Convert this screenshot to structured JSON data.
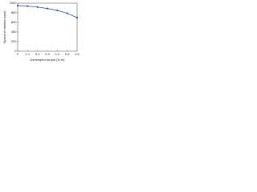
{
  "chart_data": {
    "type": "line",
    "x_label": "Developed torque (N·m)",
    "y_label": "Speed of rotation (rpm)",
    "x": [
      0,
      0.1,
      0.2,
      0.3,
      0.4,
      0.5,
      0.6
    ],
    "series": [
      {
        "color": "#1f3f8f",
        "values": [
          950,
          940,
          920,
          890,
          850,
          790,
          700
        ]
      }
    ],
    "xlim": [
      0,
      0.6
    ],
    "xticks": [
      0,
      0.1,
      0.2,
      0.3,
      0.4,
      0.5,
      0.6
    ],
    "ylim": [
      0,
      1000
    ],
    "yticks": [
      0,
      200,
      400,
      600,
      800,
      1000
    ],
    "grid": false
  }
}
